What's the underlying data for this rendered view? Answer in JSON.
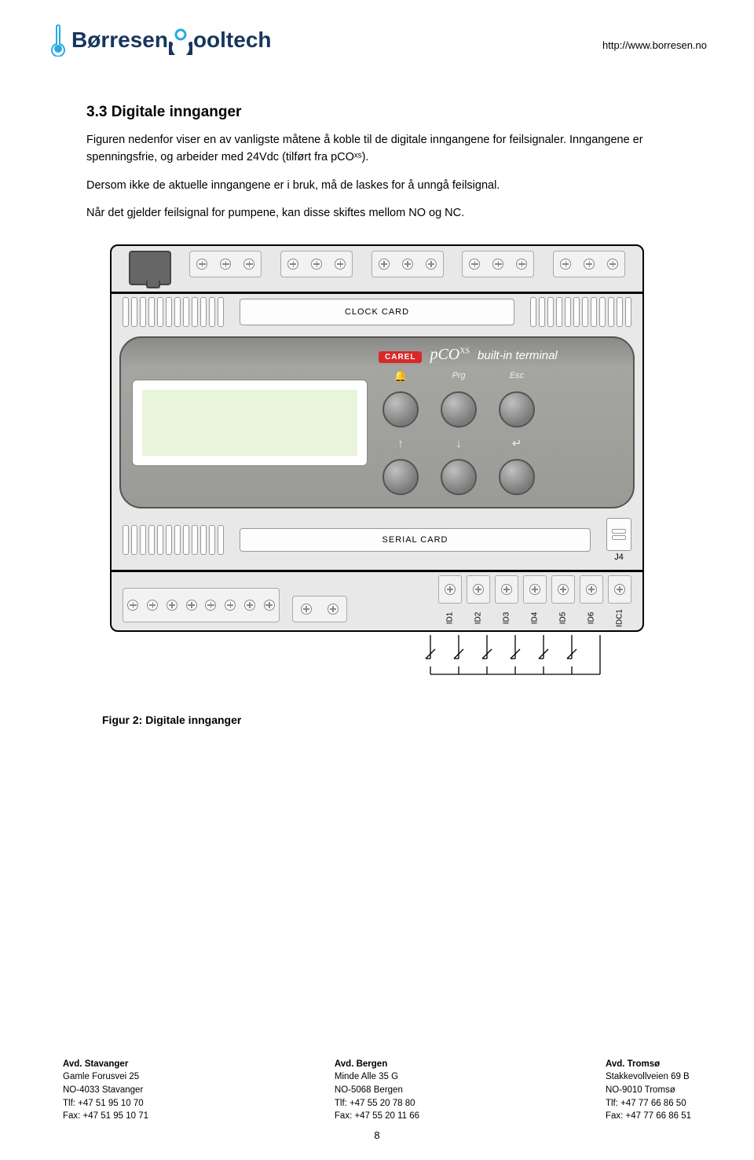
{
  "header": {
    "logo_part1": "Børresen",
    "logo_part2": "ooltech",
    "url": "http://www.borresen.no"
  },
  "section": {
    "title": "3.3 Digitale innganger",
    "para1": "Figuren nedenfor viser en av vanligste måtene å koble til de digitale inngangene for feilsignaler. Inngangene er spenningsfrie, og arbeider med 24Vdc (tilført fra pCOˣˢ).",
    "para2": "Dersom ikke de aktuelle inngangene er i bruk, må de laskes for å unngå feilsignal.",
    "para3": "Når det gjelder feilsignal for pumpene, kan disse skiftes mellom NO og NC."
  },
  "device": {
    "clock_slot": "CLOCK CARD",
    "serial_slot": "SERIAL CARD",
    "brand_carel": "CAREL",
    "brand_pco": "pCO",
    "brand_pco_sup": "XS",
    "brand_built": "built-in terminal",
    "btn_labels_top": [
      "",
      "Prg",
      "Esc"
    ],
    "bell_icon": "🔔",
    "arrows": [
      "↑",
      "↓",
      "↵"
    ],
    "j4_label": "J4",
    "id_labels": [
      "ID1",
      "ID2",
      "ID3",
      "ID4",
      "ID5",
      "ID6",
      "IDC1"
    ]
  },
  "figure_caption": "Figur 2: Digitale innganger",
  "footer": {
    "cols": [
      {
        "hdr": "Avd. Stavanger",
        "lines": [
          "Gamle Forusvei 25",
          "NO-4033 Stavanger",
          "Tlf: +47 51 95 10 70",
          "Fax: +47 51 95 10 71"
        ]
      },
      {
        "hdr": "Avd. Bergen",
        "lines": [
          "Minde Alle 35 G",
          "NO-5068 Bergen",
          "Tlf: +47 55 20 78 80",
          "Fax: +47 55 20 11 66"
        ]
      },
      {
        "hdr": "Avd. Tromsø",
        "lines": [
          "Stakkevollveien 69 B",
          "NO-9010 Tromsø",
          "Tlf: +47 77 66 86 50",
          "Fax: +47 77 66 86 51"
        ]
      }
    ],
    "page_number": "8"
  },
  "colors": {
    "logo_nav": "#17365d",
    "logo_cyan": "#29abe2",
    "carel_red": "#d62a2a",
    "device_bg": "#e8e8e8",
    "panel_grey": "#9a9a97"
  }
}
